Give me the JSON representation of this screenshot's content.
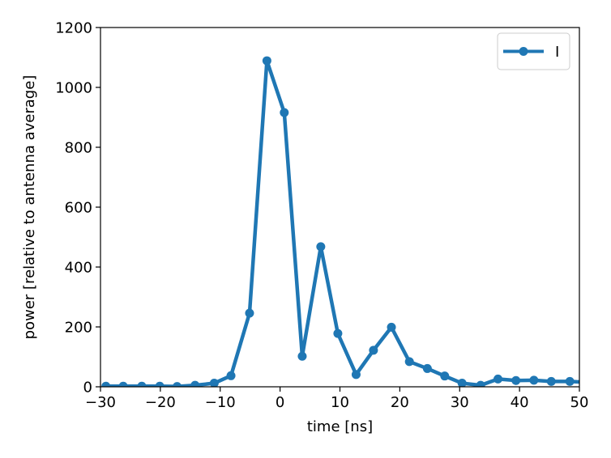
{
  "chart_data": {
    "type": "line",
    "title": "",
    "xlabel": "time [ns]",
    "ylabel": "power [relative to antenna average]",
    "xlim": [
      -30,
      50
    ],
    "ylim": [
      0,
      1200
    ],
    "xticks": [
      -30,
      -20,
      -10,
      0,
      10,
      20,
      30,
      40,
      50
    ],
    "xtick_labels": [
      "−30",
      "−20",
      "−10",
      "0",
      "10",
      "20",
      "30",
      "40",
      "50"
    ],
    "yticks": [
      0,
      200,
      400,
      600,
      800,
      1000,
      1200
    ],
    "ytick_labels": [
      "0",
      "200",
      "400",
      "600",
      "800",
      "1000",
      "1200"
    ],
    "grid": false,
    "legend_position": "upper right",
    "series": [
      {
        "name": "I",
        "color": "#1f77b4",
        "marker": "circle",
        "x": [
          -29.1,
          -26.2,
          -23.1,
          -20.1,
          -17.2,
          -14.2,
          -11.0,
          -8.2,
          -5.1,
          -2.2,
          0.7,
          3.7,
          6.8,
          9.65,
          12.7,
          15.6,
          18.6,
          21.6,
          24.6,
          27.5,
          30.4,
          33.5,
          36.4,
          39.4,
          42.4,
          45.3,
          48.4
        ],
        "y": [
          2,
          2,
          2,
          2,
          1,
          5,
          12,
          37,
          246,
          1089,
          916,
          102,
          468,
          178,
          41,
          122,
          199,
          84,
          61,
          36,
          12,
          5,
          26,
          21,
          22,
          18,
          18
        ]
      }
    ],
    "clip_extension": {
      "x": 51.3,
      "y": 15
    }
  }
}
